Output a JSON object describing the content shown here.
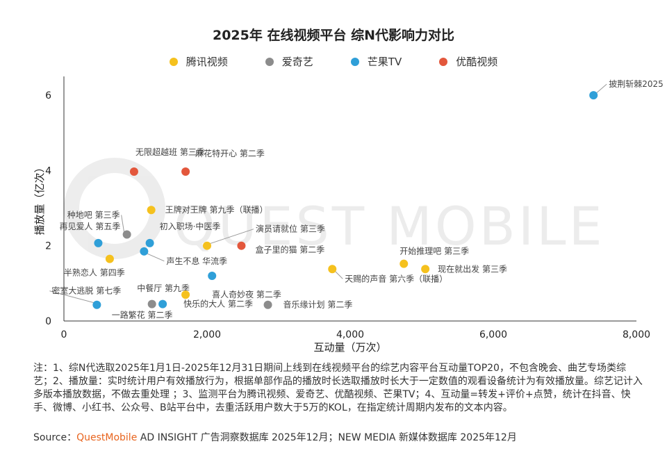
{
  "title": "2025年 在线视频平台 综N代影响力对比",
  "legend": [
    {
      "name": "腾讯视频",
      "color": "#f5c11e"
    },
    {
      "name": "爱奇艺",
      "color": "#8c8c8c"
    },
    {
      "name": "芒果TV",
      "color": "#2f9fd8"
    },
    {
      "name": "优酷视频",
      "color": "#e3573c"
    }
  ],
  "watermark": "QUEST MOBILE",
  "chart_data": {
    "type": "scatter",
    "xlabel": "互动量（万次）",
    "ylabel": "播放量（亿次）",
    "xlim": [
      0,
      8000
    ],
    "ylim": [
      0,
      6.5
    ],
    "xticks": [
      0,
      2000,
      4000,
      6000,
      8000
    ],
    "xtick_labels": [
      "0",
      "2,000",
      "4,000",
      "6,000",
      "8,000"
    ],
    "yticks": [
      0,
      2,
      4,
      6
    ],
    "ytick_labels": [
      "0",
      "2",
      "4",
      "6"
    ],
    "grid": false,
    "points": [
      {
        "label": "披荆斩棘2025",
        "platform": "芒果TV",
        "x": 7400,
        "y": 6.0
      },
      {
        "label": "无限超越班 第三季",
        "platform": "优酷视频",
        "x": 980,
        "y": 3.97
      },
      {
        "label": "麻花特开心 第二季",
        "platform": "优酷视频",
        "x": 1700,
        "y": 3.97
      },
      {
        "label": "王牌对王牌 第九季（联播）",
        "platform": "腾讯视频",
        "x": 1220,
        "y": 2.95
      },
      {
        "label": "种地吧 第三季",
        "platform": "爱奇艺",
        "x": 880,
        "y": 2.3
      },
      {
        "label": "初入职场·中医季",
        "platform": "芒果TV",
        "x": 1200,
        "y": 2.07
      },
      {
        "label": "再见爱人 第五季",
        "platform": "芒果TV",
        "x": 480,
        "y": 2.07
      },
      {
        "label": "演员请就位 第三季",
        "platform": "腾讯视频",
        "x": 2000,
        "y": 2.0
      },
      {
        "label": "盒子里的猫 第二季",
        "platform": "优酷视频",
        "x": 2480,
        "y": 2.0
      },
      {
        "label": "声生不息 华流季",
        "platform": "芒果TV",
        "x": 1120,
        "y": 1.85
      },
      {
        "label": "半熟恋人 第四季",
        "platform": "腾讯视频",
        "x": 640,
        "y": 1.65
      },
      {
        "label": "中餐厅 第九季",
        "platform": "芒果TV",
        "x": 2070,
        "y": 1.2
      },
      {
        "label": "开始推理吧 第三季",
        "platform": "腾讯视频",
        "x": 4750,
        "y": 1.52
      },
      {
        "label": "现在就出发 第三季",
        "platform": "腾讯视频",
        "x": 5050,
        "y": 1.38
      },
      {
        "label": "天赐的声音 第六季（联播）",
        "platform": "腾讯视频",
        "x": 3750,
        "y": 1.38
      },
      {
        "label": "喜人奇妙夜 第二季",
        "platform": "腾讯视频",
        "x": 1700,
        "y": 0.7
      },
      {
        "label": "密室大逃脱 第七季",
        "platform": "芒果TV",
        "x": 460,
        "y": 0.43
      },
      {
        "label": "一路繁花 第二季",
        "platform": "爱奇艺",
        "x": 1230,
        "y": 0.45
      },
      {
        "label": "快乐的大人 第二季",
        "platform": "芒果TV",
        "x": 1380,
        "y": 0.45
      },
      {
        "label": "音乐缘计划 第二季",
        "platform": "爱奇艺",
        "x": 2850,
        "y": 0.43
      }
    ]
  },
  "notes": [
    "注：1、综N代选取2025年1月1日-2025年12月31日期间上线到在线视频平台的综艺内容平台互动量TOP20，不包含晚会、曲艺专场类综艺；2、播放量：实时统计用户有效播放行为，根据单部作品的播放时长选取播放时长大于一定数值的观看设备统计为有效播放量。综艺记计入多版本播放数据，不做去重处理 ；3、监测平台为腾讯视频、爱奇艺、优酷视频、芒果TV；4、互动量=转发+评价+点赞，统计在抖音、快手、微博、小红书、公众号、B站平台中，去重活跃用户数大于5万的KOL，在指定统计周期内发布的文本内容。"
  ],
  "source": {
    "prefix": "Source：",
    "brand": "QuestMobile",
    "rest": " AD INSIGHT 广告洞察数据库 2025年12月；NEW MEDIA 新媒体数据库 2025年12月"
  }
}
